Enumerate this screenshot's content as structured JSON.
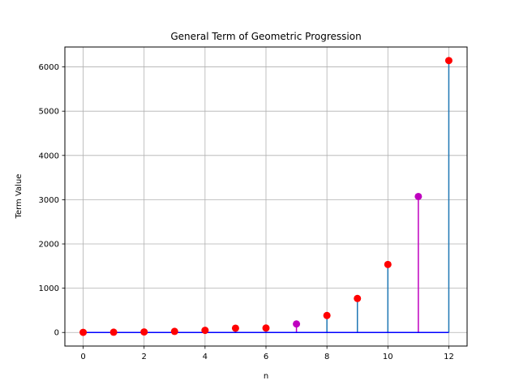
{
  "chart_data": {
    "type": "stem",
    "title": "General Term of Geometric Progression",
    "xlabel": "n",
    "ylabel": "Term Value",
    "xlim": [
      -0.6,
      12.6
    ],
    "ylim": [
      -307,
      6450
    ],
    "xticks": [
      0,
      2,
      4,
      6,
      8,
      10,
      12
    ],
    "yticks": [
      0,
      1000,
      2000,
      3000,
      4000,
      5000,
      6000
    ],
    "grid": true,
    "baseline": 0,
    "colors": {
      "stem": "#1f77b4",
      "stem_highlight": "#bf00bf",
      "marker": "#ff0000",
      "marker_highlight": "#bf00bf",
      "baseline": "#0000ff",
      "grid": "#b0b0b0"
    },
    "points": [
      {
        "x": 0,
        "y": 3,
        "highlight": false
      },
      {
        "x": 1,
        "y": 6,
        "highlight": false
      },
      {
        "x": 2,
        "y": 12,
        "highlight": false
      },
      {
        "x": 3,
        "y": 24,
        "highlight": false
      },
      {
        "x": 4,
        "y": 48,
        "highlight": false
      },
      {
        "x": 5,
        "y": 96,
        "highlight": false
      },
      {
        "x": 6,
        "y": 100,
        "highlight": false
      },
      {
        "x": 7,
        "y": 192,
        "highlight": true
      },
      {
        "x": 8,
        "y": 384,
        "highlight": false
      },
      {
        "x": 9,
        "y": 768,
        "highlight": false
      },
      {
        "x": 10,
        "y": 1536,
        "highlight": false
      },
      {
        "x": 11,
        "y": 3072,
        "highlight": true
      },
      {
        "x": 12,
        "y": 6144,
        "highlight": false
      }
    ]
  }
}
